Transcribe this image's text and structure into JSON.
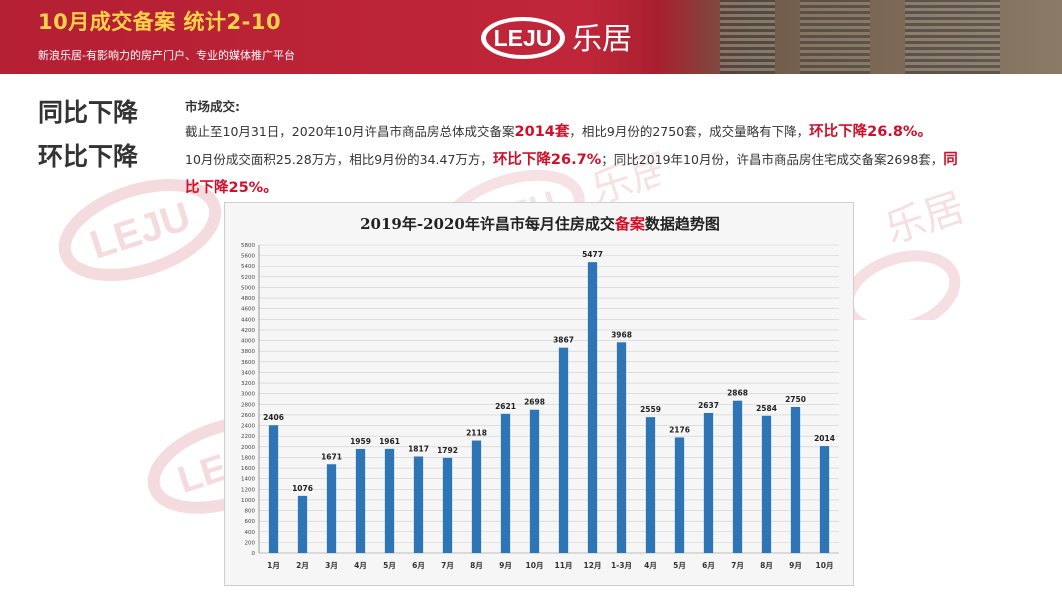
{
  "banner": {
    "title": "10月成交备案 统计2-10",
    "subtitle": "新浪乐居-有影响力的房产门户、专业的媒体推广平台",
    "logo_text": "LEJU",
    "logo_cn": "乐居"
  },
  "side": {
    "line1": "同比下降",
    "line2": "环比下降"
  },
  "market": {
    "heading": "市场成交:",
    "p1_a": "截止至10月31日，2020年10月许昌市商品房总体成交备案",
    "p1_hl1": "2014套",
    "p1_b": "，相比9月份的2750套，成交量略有下降，",
    "p1_hl2": "环比下降26.8%。",
    "p2_a": "10月份成交面积25.28万方，相比9月份的34.47万方，",
    "p2_hl1": "环比下降26.7%",
    "p2_b": "；同比2019年10月份，许昌市商品房住宅成交备案2698套，",
    "p2_hl2": "同比下降25%。"
  },
  "watermark": {
    "logo_text": "LEJU",
    "cn": "乐居"
  },
  "colors": {
    "banner_red": "#b51f33",
    "title_yellow": "#ffd24a",
    "highlight_red": "#d0102a",
    "bar_blue": "#2e75b6"
  },
  "chart_data": {
    "type": "bar",
    "title_a": "2019年-2020年许昌市每月住房成交",
    "title_b": "备案",
    "title_c": "数据趋势图",
    "categories": [
      "1月",
      "2月",
      "3月",
      "4月",
      "5月",
      "6月",
      "7月",
      "8月",
      "9月",
      "10月",
      "11月",
      "12月",
      "1-3月",
      "4月",
      "5月",
      "6月",
      "7月",
      "8月",
      "9月",
      "10月"
    ],
    "values": [
      2406,
      1076,
      1671,
      1959,
      1961,
      1817,
      1792,
      2118,
      2621,
      2698,
      3867,
      5477,
      3968,
      2559,
      2176,
      2637,
      2868,
      2584,
      2750,
      2014
    ],
    "ylim": [
      0,
      5800
    ],
    "ytick_step": 200,
    "grid": true,
    "legend": "none"
  }
}
